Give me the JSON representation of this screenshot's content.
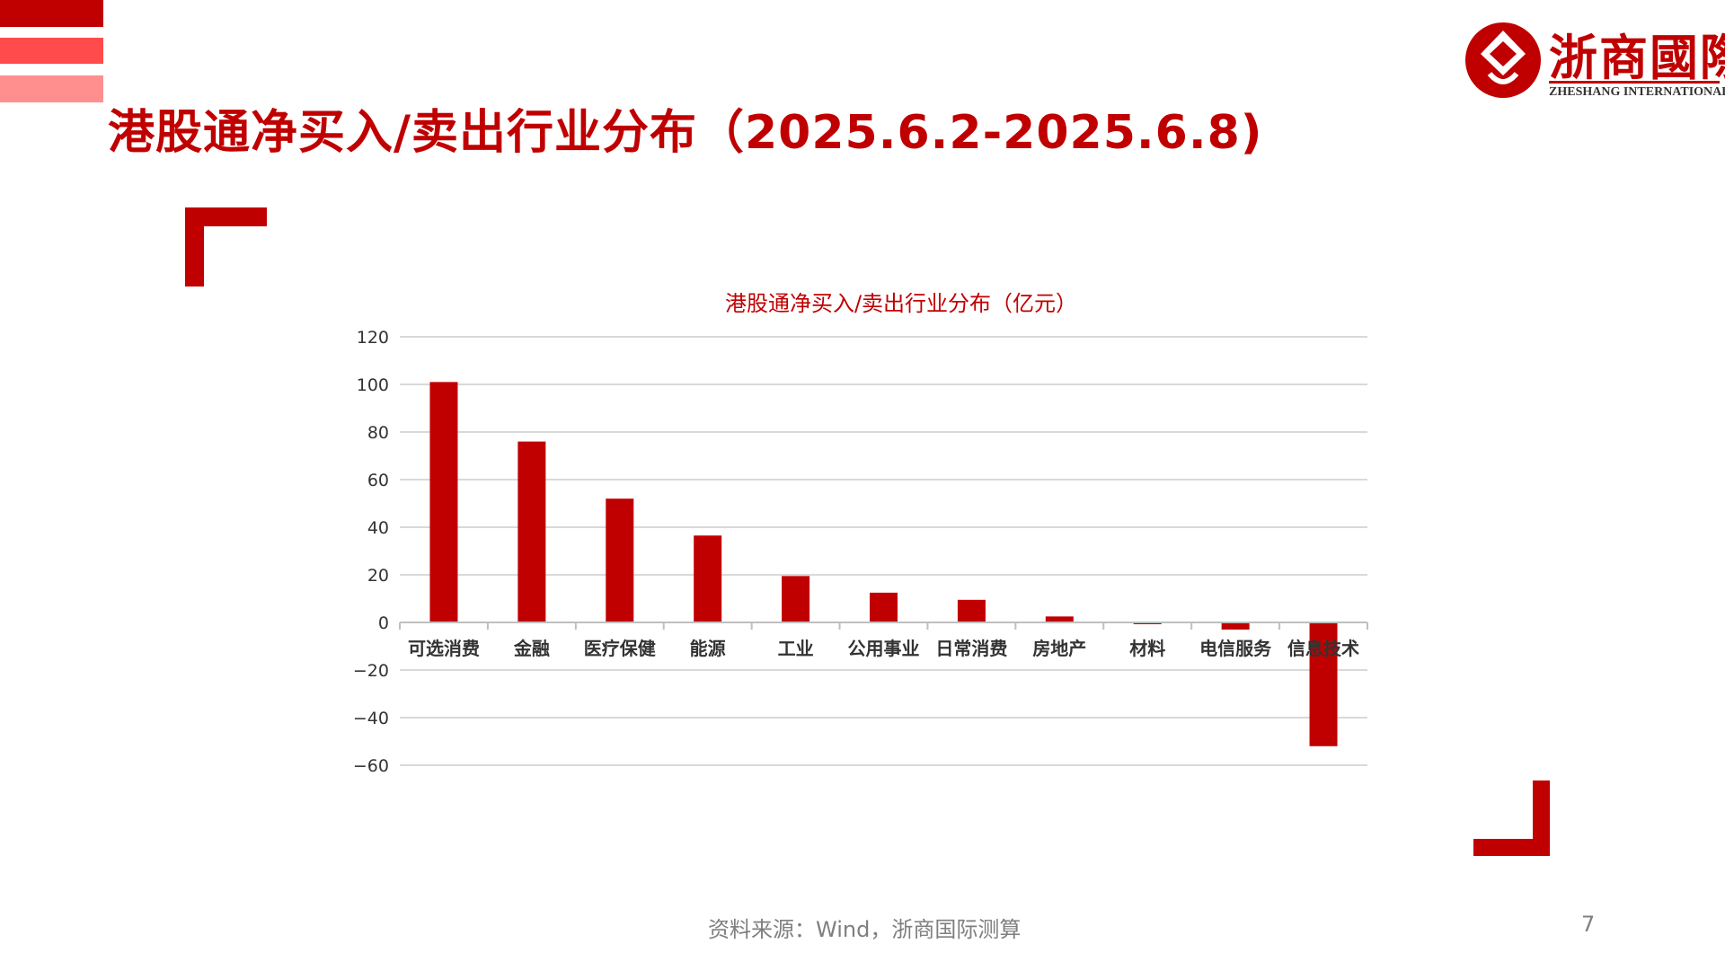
{
  "slide": {
    "title": "港股通净买入/卖出行业分布（2025.6.2-2025.6.8)",
    "source": "资料来源：Wind，浙商国际测算",
    "page_number": "7"
  },
  "logo": {
    "name": "浙商國際",
    "subtitle": "ZHESHANG INTERNATIONAL"
  },
  "colors": {
    "accent": "#c00000",
    "stripe_mid": "#ff4b4b",
    "stripe_light": "#ff8f8f",
    "grid": "#d9d9d9",
    "text_gray": "#7f7f7f"
  },
  "chart_data": {
    "type": "bar",
    "title": "港股通净买入/卖出行业分布（亿元）",
    "categories": [
      "可选消费",
      "金融",
      "医疗保健",
      "能源",
      "工业",
      "公用事业",
      "日常消费",
      "房地产",
      "材料",
      "电信服务",
      "信息技术"
    ],
    "values": [
      101,
      76,
      52,
      36.5,
      19.5,
      12.5,
      9.5,
      2.5,
      -0.5,
      -3,
      -52
    ],
    "ylim": [
      -60,
      120
    ],
    "yticks": [
      "120",
      "100",
      "80",
      "60",
      "40",
      "20",
      "0",
      "−20",
      "−40",
      "−60"
    ],
    "ytick_values": [
      120,
      100,
      80,
      60,
      40,
      20,
      0,
      -20,
      -40,
      -60
    ],
    "grid": true,
    "legend": "none",
    "bar_color": "#c00000"
  }
}
